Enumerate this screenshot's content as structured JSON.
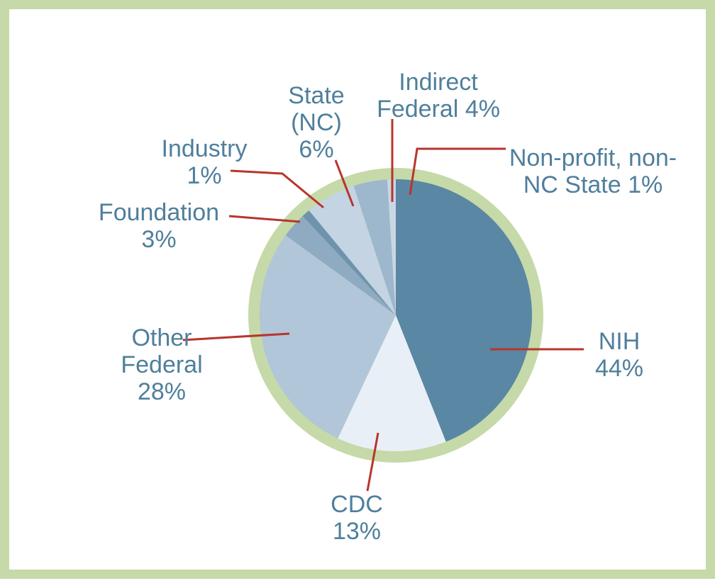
{
  "chart_data": {
    "type": "pie",
    "categories": [
      "NIH",
      "CDC",
      "Other Federal",
      "Foundation",
      "Industry",
      "State (NC)",
      "Indirect Federal",
      "Non-profit, non-NC State"
    ],
    "values": [
      44,
      13,
      28,
      3,
      1,
      6,
      4,
      1
    ],
    "value_labels": [
      "44%",
      "13%",
      "28%",
      "3%",
      "1%",
      "6%",
      "4%",
      "1%"
    ],
    "colors": [
      "#5a87a3",
      "#e9eff7",
      "#b1c6d9",
      "#8eabc2",
      "#6f93ad",
      "#c4d4e3",
      "#9db7cc",
      "#c9d7e5"
    ]
  }
}
